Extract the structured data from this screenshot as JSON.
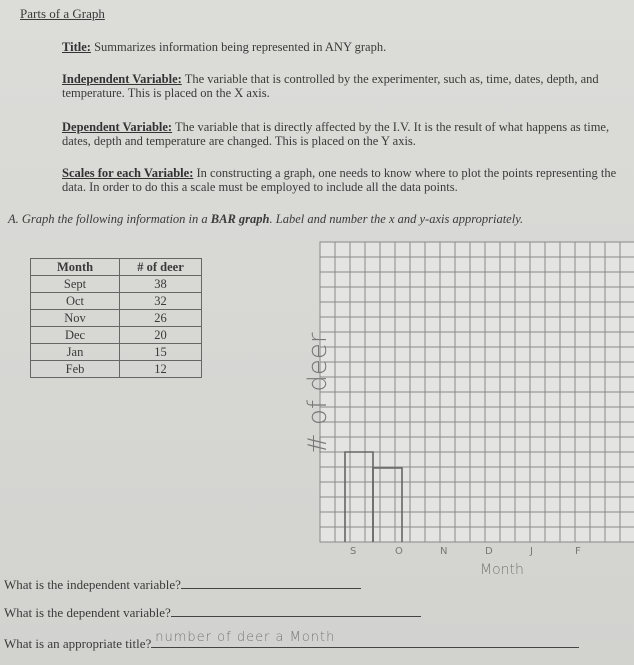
{
  "header": {
    "title": "Parts of a Graph"
  },
  "definitions": [
    {
      "term": "Title:",
      "text": "Summarizes information being represented in ANY graph."
    },
    {
      "term": "Independent Variable:",
      "text": "The variable that is controlled by the experimenter, such as, time, dates, depth, and temperature.  This is placed on the X axis."
    },
    {
      "term": "Dependent Variable:",
      "text": "The variable that is directly affected by the I.V.  It is the result of what happens as time, dates, depth and temperature are changed.  This  is placed on the Y axis."
    },
    {
      "term": "Scales for each Variable:",
      "text": "In constructing a graph, one needs to know where to plot the points representing the data.  In order to do this a scale must be employed to include all the data points."
    }
  ],
  "instruction": [
    "A.  Graph the following information in a ",
    "BAR graph",
    ".  Label and number the x and y-axis appropriately."
  ],
  "table": {
    "header": [
      "Month",
      "# of deer"
    ],
    "rows": [
      [
        "Sept",
        38
      ],
      [
        "Oct",
        32
      ],
      [
        "Nov",
        26
      ],
      [
        "Dec",
        20
      ],
      [
        "Jan",
        15
      ],
      [
        "Feb",
        12
      ]
    ]
  },
  "handwriting": {
    "y_label": "# of deer",
    "x_label": "Month",
    "x_ticks": [
      "S",
      "O",
      "N",
      "D",
      "J",
      "F"
    ],
    "answer": "number of deer a Month"
  },
  "questions": [
    "What is the independent variable?",
    "What is the dependent variable?",
    "What is an appropriate title?"
  ]
}
